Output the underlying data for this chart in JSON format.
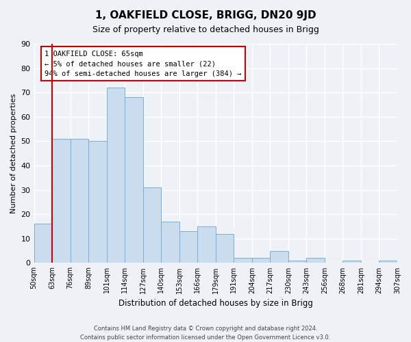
{
  "title": "1, OAKFIELD CLOSE, BRIGG, DN20 9JD",
  "subtitle": "Size of property relative to detached houses in Brigg",
  "xlabel": "Distribution of detached houses by size in Brigg",
  "ylabel": "Number of detached properties",
  "bin_edges": [
    "50sqm",
    "63sqm",
    "76sqm",
    "89sqm",
    "101sqm",
    "114sqm",
    "127sqm",
    "140sqm",
    "153sqm",
    "166sqm",
    "179sqm",
    "191sqm",
    "204sqm",
    "217sqm",
    "230sqm",
    "243sqm",
    "256sqm",
    "268sqm",
    "281sqm",
    "294sqm",
    "307sqm"
  ],
  "bar_values": [
    16,
    51,
    51,
    50,
    72,
    68,
    31,
    17,
    13,
    15,
    12,
    2,
    2,
    5,
    1,
    2,
    0,
    1,
    0,
    1
  ],
  "bar_color": "#c9ddef",
  "bar_edge_color": "#7aadd4",
  "vline_index": 1,
  "vline_color": "#cc0000",
  "ylim": [
    0,
    90
  ],
  "yticks": [
    0,
    10,
    20,
    30,
    40,
    50,
    60,
    70,
    80,
    90
  ],
  "annotation_title": "1 OAKFIELD CLOSE: 65sqm",
  "annotation_line1": "← 5% of detached houses are smaller (22)",
  "annotation_line2": "94% of semi-detached houses are larger (384) →",
  "annotation_box_color": "#ffffff",
  "annotation_box_edge": "#cc0000",
  "footer_line1": "Contains HM Land Registry data © Crown copyright and database right 2024.",
  "footer_line2": "Contains public sector information licensed under the Open Government Licence v3.0.",
  "background_color": "#eef2f7",
  "grid_color": "#ffffff"
}
